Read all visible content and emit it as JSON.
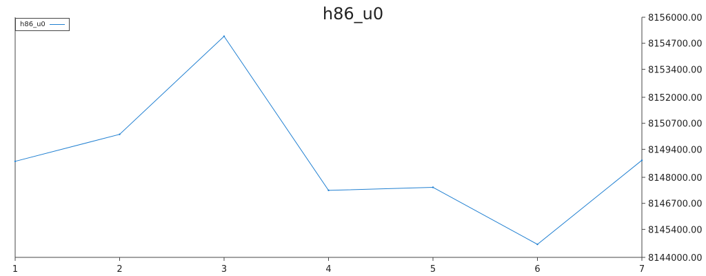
{
  "chart_data": {
    "type": "line",
    "title": "h86_u0",
    "x": [
      1,
      2,
      3,
      4,
      5,
      6,
      7
    ],
    "series": [
      {
        "name": "h86_u0",
        "color": "#1f7fd1",
        "values": [
          8148800,
          8150150,
          8155050,
          8147350,
          8147500,
          8144650,
          8148850
        ]
      }
    ],
    "xlim": [
      1,
      7
    ],
    "ylim": [
      8144000,
      8156000
    ],
    "y_ticks": [
      8144000,
      8145400,
      8146700,
      8148000,
      8149400,
      8150700,
      8152000,
      8153400,
      8154700,
      8156000
    ],
    "y_tick_labels": [
      "8144000.00",
      "8145400.00",
      "8146700.00",
      "8148000.00",
      "8149400.00",
      "8150700.00",
      "8152000.00",
      "8153400.00",
      "8154700.00",
      "8156000.00"
    ],
    "x_tick_labels": [
      "1",
      "2",
      "3",
      "4",
      "5",
      "6",
      "7"
    ],
    "y_axis_side": "right",
    "legend": "top-left",
    "grid": false
  }
}
